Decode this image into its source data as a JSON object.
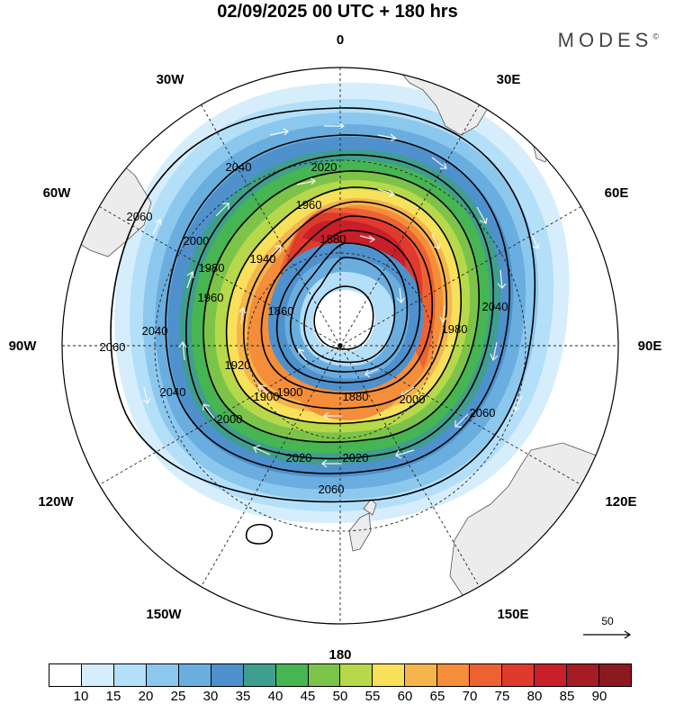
{
  "header": {
    "title": "02/09/2025  00 UTC  + 180 hrs",
    "brand": "MODES",
    "brand_mark": "©"
  },
  "map": {
    "projection": "polar-stereographic-south",
    "longitude_labels": {
      "lon_0": "0",
      "lon_30e": "30E",
      "lon_60e": "60E",
      "lon_90e": "90E",
      "lon_120e": "120E",
      "lon_150e": "150E",
      "lon_180": "180",
      "lon_150w": "150W",
      "lon_120w": "120W",
      "lon_90w": "90W",
      "lon_60w": "60W",
      "lon_30w": "30W"
    },
    "contour_labels": {
      "c2060_a": "2060",
      "c2060_b": "2060",
      "c2060_c": "2060",
      "c2060_d": "2060",
      "c2040_a": "2040",
      "c2040_b": "2040",
      "c2040_c": "2040",
      "c2040_d": "2040",
      "c2020_a": "2020",
      "c2020_b": "2020",
      "c2020_c": "2020",
      "c2000_a": "2000",
      "c2000_b": "2000",
      "c2000_c": "2000",
      "c1980_a": "1980",
      "c1980_b": "1980",
      "c1960_a": "1960",
      "c1960_b": "1960",
      "c1940_a": "1940",
      "c1920_a": "1920",
      "c1900_a": "1900",
      "c1900_b": "1900",
      "c1880_a": "1880",
      "c1880_b": "1880",
      "c1860_a": "1860"
    },
    "reference_vector_label": "50"
  },
  "legend": {
    "colors": [
      "#ffffff",
      "#d6eefc",
      "#b4dff8",
      "#8cc8ee",
      "#6aaedf",
      "#4f91cc",
      "#3f9f8e",
      "#46b552",
      "#7cc349",
      "#b6d84a",
      "#f7e15a",
      "#f6b44c",
      "#f48e3a",
      "#ec6232",
      "#df3a2c",
      "#c81f2a",
      "#a51d24",
      "#8a1a1f"
    ],
    "ticks": [
      "10",
      "15",
      "20",
      "25",
      "30",
      "35",
      "40",
      "45",
      "50",
      "55",
      "60",
      "65",
      "70",
      "75",
      "80",
      "85",
      "90"
    ]
  }
}
